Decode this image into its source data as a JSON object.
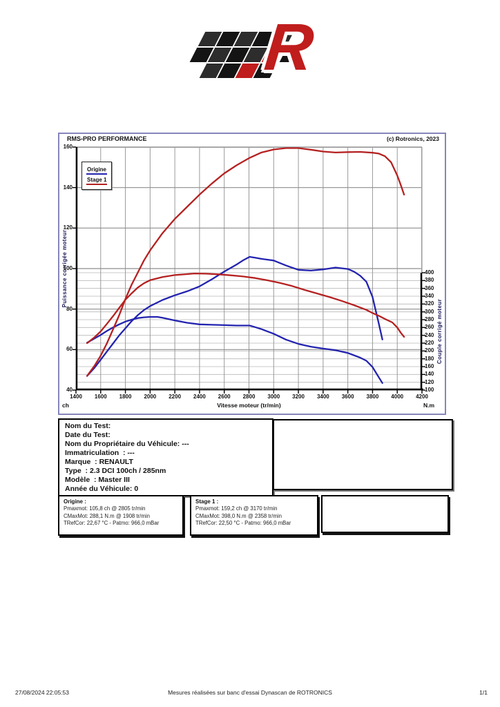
{
  "brand": {
    "red": "#c01d1d",
    "dark": "#141414",
    "mid": "#2d2d2d"
  },
  "chart": {
    "title": "RMS-PRO PERFORMANCE",
    "copyright": "(c) Rotronics, 2023",
    "y_left_label": "Puissance corrigée moteur",
    "y_right_label": "Couple corrigé moteur",
    "x_label": "Vitesse moteur (tr/min)",
    "x_unit_left": "ch",
    "x_unit_right": "N.m",
    "frame_border_color": "#8585bb",
    "grid_major_color": "#8d8d8d",
    "grid_minor_color": "#b7b7b7",
    "legend": [
      {
        "label": "Origine",
        "color": "#2323b0"
      },
      {
        "label": "Stage 1",
        "color": "#b52121"
      }
    ]
  },
  "chart_data": {
    "type": "line",
    "title": "RMS-PRO PERFORMANCE",
    "xlabel": "Vitesse moteur (tr/min)",
    "ylabel_left": "Puissance corrigée moteur (ch)",
    "ylabel_right": "Couple corrigé moteur (N.m)",
    "x_range": [
      1400,
      4200
    ],
    "x_ticks": [
      1400,
      1600,
      1800,
      2000,
      2200,
      2400,
      2600,
      2800,
      3000,
      3200,
      3400,
      3600,
      3800,
      4000,
      4200
    ],
    "power_left_range": [
      40,
      160
    ],
    "power_ticks": [
      160,
      140,
      120,
      100,
      80,
      60,
      40
    ],
    "torque_right_range": [
      100,
      400
    ],
    "torque_ticks": [
      400,
      380,
      360,
      340,
      320,
      300,
      280,
      260,
      240,
      220,
      200,
      180,
      160,
      140,
      120,
      100
    ],
    "grid": true,
    "legend_position": "top-left",
    "series": [
      {
        "name": "Origine - Puissance (ch)",
        "axis": "power",
        "color": "#2323b0",
        "points": [
          [
            1490,
            47
          ],
          [
            1550,
            51
          ],
          [
            1600,
            55
          ],
          [
            1650,
            59
          ],
          [
            1700,
            63
          ],
          [
            1750,
            67
          ],
          [
            1800,
            70.5
          ],
          [
            1850,
            74
          ],
          [
            1900,
            77
          ],
          [
            1950,
            79.5
          ],
          [
            2000,
            81.5
          ],
          [
            2100,
            84.5
          ],
          [
            2200,
            86.8
          ],
          [
            2300,
            88.8
          ],
          [
            2400,
            91.2
          ],
          [
            2500,
            94.7
          ],
          [
            2600,
            98.5
          ],
          [
            2700,
            102
          ],
          [
            2750,
            104
          ],
          [
            2805,
            105.8
          ],
          [
            2850,
            105.4
          ],
          [
            2900,
            104.8
          ],
          [
            3000,
            104
          ],
          [
            3100,
            101.5
          ],
          [
            3200,
            99.4
          ],
          [
            3300,
            99
          ],
          [
            3400,
            99.6
          ],
          [
            3500,
            100.5
          ],
          [
            3600,
            99.8
          ],
          [
            3650,
            98.5
          ],
          [
            3700,
            96.5
          ],
          [
            3750,
            93.5
          ],
          [
            3800,
            86
          ],
          [
            3850,
            73
          ],
          [
            3880,
            65
          ]
        ]
      },
      {
        "name": "Origine - Couple (N.m)",
        "axis": "torque",
        "color": "#2323b0",
        "points": [
          [
            1490,
            221
          ],
          [
            1550,
            232
          ],
          [
            1600,
            241
          ],
          [
            1650,
            251
          ],
          [
            1700,
            260
          ],
          [
            1750,
            268
          ],
          [
            1800,
            275
          ],
          [
            1850,
            280
          ],
          [
            1900,
            284
          ],
          [
            1950,
            286
          ],
          [
            2000,
            287
          ],
          [
            2060,
            287
          ],
          [
            2100,
            285
          ],
          [
            2200,
            278
          ],
          [
            2300,
            272
          ],
          [
            2400,
            268
          ],
          [
            2500,
            267
          ],
          [
            2600,
            266
          ],
          [
            2700,
            265
          ],
          [
            2805,
            265
          ],
          [
            2850,
            261
          ],
          [
            2900,
            256
          ],
          [
            3000,
            244
          ],
          [
            3100,
            229
          ],
          [
            3200,
            218
          ],
          [
            3300,
            211
          ],
          [
            3400,
            206
          ],
          [
            3500,
            202
          ],
          [
            3600,
            195
          ],
          [
            3700,
            183
          ],
          [
            3750,
            175
          ],
          [
            3800,
            159
          ],
          [
            3850,
            133
          ],
          [
            3880,
            118
          ]
        ]
      },
      {
        "name": "Stage 1 - Puissance (ch)",
        "axis": "power",
        "color": "#b52121",
        "points": [
          [
            1490,
            47
          ],
          [
            1550,
            52
          ],
          [
            1600,
            57
          ],
          [
            1650,
            63
          ],
          [
            1700,
            70
          ],
          [
            1750,
            77
          ],
          [
            1800,
            85
          ],
          [
            1850,
            92
          ],
          [
            1900,
            98
          ],
          [
            1950,
            104
          ],
          [
            2000,
            109
          ],
          [
            2100,
            117.5
          ],
          [
            2200,
            124.5
          ],
          [
            2300,
            130.5
          ],
          [
            2400,
            136.5
          ],
          [
            2500,
            142
          ],
          [
            2600,
            147
          ],
          [
            2700,
            151
          ],
          [
            2800,
            154.5
          ],
          [
            2900,
            157.3
          ],
          [
            3000,
            158.8
          ],
          [
            3100,
            159.5
          ],
          [
            3200,
            159.5
          ],
          [
            3300,
            158.7
          ],
          [
            3400,
            157.8
          ],
          [
            3500,
            157.3
          ],
          [
            3600,
            157.5
          ],
          [
            3700,
            157.6
          ],
          [
            3800,
            157.2
          ],
          [
            3850,
            156.8
          ],
          [
            3900,
            155.5
          ],
          [
            3950,
            152.5
          ],
          [
            4000,
            146
          ],
          [
            4030,
            141
          ],
          [
            4055,
            136.5
          ]
        ]
      },
      {
        "name": "Stage 1 - Couple (N.m)",
        "axis": "torque",
        "color": "#b52121",
        "points": [
          [
            1490,
            220
          ],
          [
            1550,
            235
          ],
          [
            1600,
            250
          ],
          [
            1650,
            269
          ],
          [
            1700,
            289
          ],
          [
            1750,
            310
          ],
          [
            1800,
            331
          ],
          [
            1850,
            347
          ],
          [
            1900,
            362
          ],
          [
            1950,
            373
          ],
          [
            2000,
            381
          ],
          [
            2100,
            389
          ],
          [
            2200,
            394
          ],
          [
            2300,
            396.5
          ],
          [
            2358,
            398
          ],
          [
            2450,
            397.5
          ],
          [
            2550,
            396
          ],
          [
            2650,
            393.5
          ],
          [
            2750,
            390.5
          ],
          [
            2850,
            386.5
          ],
          [
            2950,
            380.5
          ],
          [
            3050,
            374
          ],
          [
            3150,
            366
          ],
          [
            3250,
            356
          ],
          [
            3350,
            347
          ],
          [
            3450,
            338
          ],
          [
            3550,
            328
          ],
          [
            3650,
            317
          ],
          [
            3750,
            305
          ],
          [
            3800,
            297
          ],
          [
            3850,
            290
          ],
          [
            3900,
            282
          ],
          [
            3960,
            273
          ],
          [
            4000,
            260
          ],
          [
            4030,
            246
          ],
          [
            4055,
            236
          ]
        ]
      }
    ]
  },
  "info_box": {
    "lines": [
      "Nom du Test:",
      "Date du Test:",
      "Nom du Propriétaire du Véhicule: ---",
      "Immatriculation  : ---",
      "Marque  : RENAULT",
      "Type  : 2.3 DCI 100ch / 285nm",
      "Modèle  : Master III",
      "Année du Véhicule: 0"
    ]
  },
  "origine_box": {
    "title": "Origine :",
    "lines": [
      "Pmaxmot: 105,8 ch @ 2805 tr/min",
      "CMaxMot: 288,1 N.m @ 1908 tr/min",
      "TRefCor: 22,67 °C - Patmo: 966,0 mBar"
    ]
  },
  "stage1_box": {
    "title": "Stage 1 :",
    "lines": [
      "Pmaxmot: 159,2 ch @ 3170 tr/min",
      "CMaxMot: 398,0 N.m @ 2358 tr/min",
      "TRefCor: 22,50 °C - Patmo: 966,0 mBar"
    ]
  },
  "footer": {
    "datetime": "27/08/2024 22:05:53",
    "center": "Mesures réalisées sur banc d'essai Dynascan de ROTRONICS",
    "page_number": "1/1"
  }
}
